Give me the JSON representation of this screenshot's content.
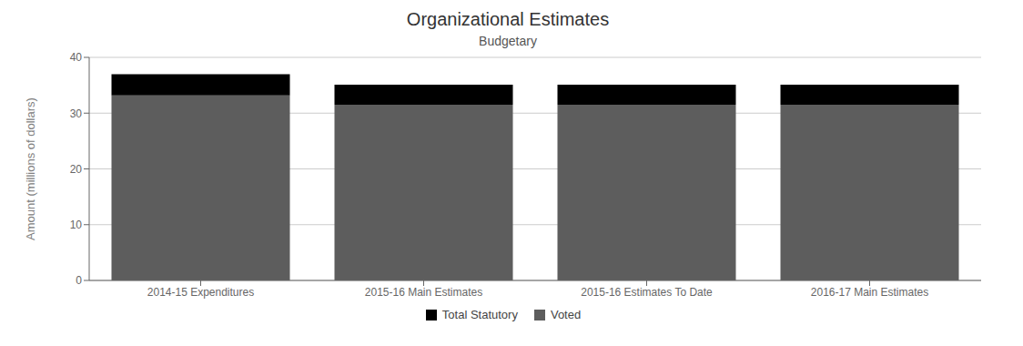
{
  "chart_data": {
    "type": "bar",
    "title": "Organizational Estimates",
    "subtitle": "Budgetary",
    "categories": [
      "2014-15 Expenditures",
      "2015-16 Main Estimates",
      "2015-16 Estimates To Date",
      "2016-17 Main Estimates"
    ],
    "series": [
      {
        "name": "Voted",
        "color": "#5d5d5d",
        "values": [
          33.2,
          31.5,
          31.5,
          31.5
        ]
      },
      {
        "name": "Total Statutory",
        "color": "#000000",
        "values": [
          3.8,
          3.6,
          3.6,
          3.6
        ]
      }
    ],
    "ylabel": "Amount (millions of dollars)",
    "ylim": [
      0,
      40
    ],
    "yticks": [
      0,
      10,
      20,
      30,
      40
    ],
    "stacked": true,
    "grid": true,
    "legend": "bottom"
  }
}
